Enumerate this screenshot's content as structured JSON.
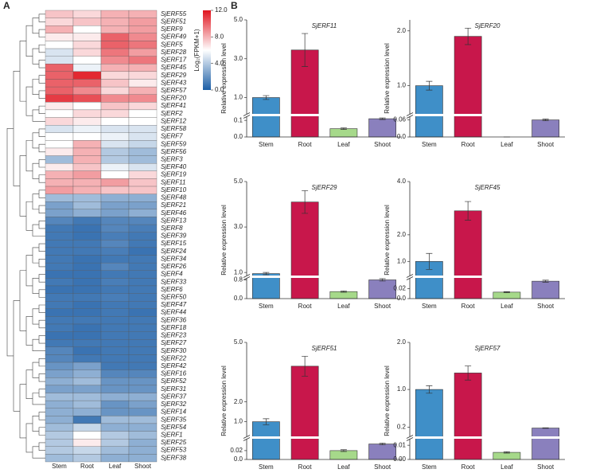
{
  "panel_labels": [
    "A",
    "B"
  ],
  "chart_data": [
    {
      "type": "heatmap",
      "columns": [
        "Stem",
        "Root",
        "Leaf",
        "Shoot"
      ],
      "rows": [
        "SjERF55",
        "SjERF51",
        "SjERF9",
        "SjERF49",
        "SjERF5",
        "SjERF28",
        "SjERF17",
        "SjERF45",
        "SjERF29",
        "SjERF43",
        "SjERF57",
        "SjERF20",
        "SjERF41",
        "SjERF2",
        "SjERF12",
        "SjERF58",
        "SjERF7",
        "SjERF59",
        "SjERF56",
        "SjERF3",
        "SjERF40",
        "SjERF19",
        "SjERF11",
        "SjERF10",
        "SjERF48",
        "SjERF21",
        "SjERF46",
        "SjERF13",
        "SjERF8",
        "SjERF39",
        "SjERF15",
        "SjERF24",
        "SjERF34",
        "SjERF26",
        "SjERF4",
        "SjERF33",
        "SjERF6",
        "SjERF50",
        "SjERF47",
        "SjERF44",
        "SjERF36",
        "SjERF18",
        "SjERF23",
        "SjERF27",
        "SjERF30",
        "SjERF22",
        "SjERF42",
        "SjERF16",
        "SjERF52",
        "SjERF31",
        "SjERF37",
        "SjERF32",
        "SjERF14",
        "SjERF35",
        "SjERF54",
        "SjERF1",
        "SjERF25",
        "SjERF53",
        "SjERF38"
      ],
      "values": [
        [
          7.5,
          7,
          8,
          8
        ],
        [
          7,
          7.5,
          8,
          8.5
        ],
        [
          8,
          6,
          8,
          8.5
        ],
        [
          6.5,
          6.5,
          10,
          9
        ],
        [
          6,
          7,
          10,
          9.5
        ],
        [
          5,
          7,
          9.5,
          8.5
        ],
        [
          5,
          6,
          9,
          9.5
        ],
        [
          10,
          5.5,
          8,
          8
        ],
        [
          10,
          11.5,
          7,
          7
        ],
        [
          10,
          10,
          7.5,
          6.5
        ],
        [
          10,
          9,
          7,
          8
        ],
        [
          11,
          10.5,
          9,
          9
        ],
        [
          6.5,
          6,
          7.5,
          7
        ],
        [
          6,
          7,
          7,
          6
        ],
        [
          7,
          6.5,
          6,
          6
        ],
        [
          5,
          5.5,
          5,
          5
        ],
        [
          6,
          6,
          5.5,
          5
        ],
        [
          6,
          8,
          5,
          4.5
        ],
        [
          6.5,
          8,
          4,
          3.5
        ],
        [
          3.5,
          8,
          4,
          3.5
        ],
        [
          6.5,
          7.5,
          5.5,
          5
        ],
        [
          8,
          8.5,
          6,
          7
        ],
        [
          8,
          8,
          8.5,
          7.5
        ],
        [
          8.5,
          8,
          7.5,
          7.5
        ],
        [
          3.5,
          3.5,
          3,
          3
        ],
        [
          2.5,
          3.5,
          2.5,
          2.5
        ],
        [
          2.5,
          3,
          2.5,
          3
        ],
        [
          1.5,
          1,
          1.5,
          1.5
        ],
        [
          1,
          0.8,
          1.5,
          1.2
        ],
        [
          1,
          0.8,
          1.2,
          1
        ],
        [
          1,
          1,
          1.5,
          1
        ],
        [
          1,
          1,
          1.2,
          0.8
        ],
        [
          1,
          0.8,
          1,
          1
        ],
        [
          1,
          0.8,
          1.5,
          1
        ],
        [
          0.8,
          0.8,
          1,
          1
        ],
        [
          1,
          0.8,
          1.2,
          1
        ],
        [
          0.8,
          0.8,
          1,
          1
        ],
        [
          1,
          1,
          1.2,
          1
        ],
        [
          1,
          0.8,
          1,
          1
        ],
        [
          0.8,
          0.8,
          1,
          0.8
        ],
        [
          1,
          1,
          1,
          1
        ],
        [
          1,
          0.8,
          1,
          1
        ],
        [
          0.8,
          0.8,
          1,
          1
        ],
        [
          1,
          1,
          1,
          1
        ],
        [
          1.5,
          0.8,
          1,
          1
        ],
        [
          1.5,
          1,
          1,
          1
        ],
        [
          2,
          2.5,
          1,
          1
        ],
        [
          2.5,
          3,
          1.5,
          1.5
        ],
        [
          3,
          3.5,
          2,
          2
        ],
        [
          2.5,
          2.5,
          2,
          2
        ],
        [
          3.5,
          3.5,
          3,
          3
        ],
        [
          3,
          3.5,
          2,
          2.5
        ],
        [
          3,
          3,
          2,
          2
        ],
        [
          3,
          1,
          3.5,
          3.5
        ],
        [
          3.5,
          4.5,
          3,
          3
        ],
        [
          4,
          6,
          4,
          3.5
        ],
        [
          4,
          6.5,
          4,
          3
        ],
        [
          4,
          4.5,
          3.5,
          3
        ],
        [
          3.5,
          4,
          3,
          3
        ]
      ],
      "colors": [
        "#1c5ea6",
        "#ffffff",
        "#e0141e"
      ],
      "zlim": [
        0,
        12
      ],
      "zticks": [
        {
          "value": 0,
          "label": "0.0"
        },
        {
          "value": 4,
          "label": "4.0"
        },
        {
          "value": 8,
          "label": "8.0"
        },
        {
          "value": 12,
          "label": "12.0"
        }
      ],
      "colorbar_label": "Log₂(FPKM+1)"
    },
    {
      "type": "bar",
      "title": "SjERF11",
      "y_label": "Relative expression level",
      "categories": [
        "Stem",
        "Root",
        "Leaf",
        "Shoot"
      ],
      "values": [
        1.0,
        3.45,
        0.05,
        0.11
      ],
      "errors": [
        0.1,
        0.85,
        0.005,
        0.005
      ],
      "colors": [
        "#3f8fc8",
        "#c8174b",
        "#a6d98a",
        "#8a80bd"
      ],
      "ylim": [
        0,
        5
      ],
      "ybreak": [
        0.12,
        0.2
      ],
      "yticks": [
        {
          "value": 0,
          "label": "0.0"
        },
        0.1,
        {
          "value": 1,
          "label": "1.0"
        },
        {
          "value": 3,
          "label": "3.0"
        },
        {
          "value": 5,
          "label": "5.0"
        }
      ]
    },
    {
      "type": "bar",
      "title": "SjERF20",
      "y_label": "Relative expression level",
      "categories": [
        "Stem",
        "Root",
        "Leaf",
        "Shoot"
      ],
      "values": [
        1.0,
        1.9,
        0,
        0.06
      ],
      "errors": [
        0.08,
        0.15,
        0,
        0.003
      ],
      "colors": [
        "#3f8fc8",
        "#c8174b",
        "#a6d98a",
        "#8a80bd"
      ],
      "ylim": [
        0,
        2.2
      ],
      "ybreak": [
        0.07,
        0.5
      ],
      "yticks": [
        {
          "value": 0,
          "label": "0.0"
        },
        0.06,
        {
          "value": 1,
          "label": "1.0"
        },
        {
          "value": 2,
          "label": "2.0"
        }
      ]
    },
    {
      "type": "bar",
      "title": "SjERF29",
      "y_label": "Relative expression level",
      "categories": [
        "Stem",
        "Root",
        "Leaf",
        "Shoot"
      ],
      "values": [
        0.95,
        4.1,
        0.3,
        0.8
      ],
      "errors": [
        0.05,
        0.5,
        0.03,
        0.05
      ],
      "colors": [
        "#3f8fc8",
        "#c8174b",
        "#a6d98a",
        "#8a80bd"
      ],
      "ylim": [
        0,
        5
      ],
      "ybreak": [
        0.85,
        0.9
      ],
      "yticks": [
        {
          "value": 0,
          "label": "0.0"
        },
        0.8,
        {
          "value": 1,
          "label": "1.0"
        },
        {
          "value": 3,
          "label": "3.0"
        },
        {
          "value": 5,
          "label": "5.0"
        }
      ]
    },
    {
      "type": "bar",
      "title": "SjERF45",
      "y_label": "Relative expression level",
      "categories": [
        "Stem",
        "Root",
        "Leaf",
        "Shoot"
      ],
      "values": [
        1.0,
        2.9,
        0.013,
        0.035
      ],
      "errors": [
        0.3,
        0.35,
        0.001,
        0.002
      ],
      "colors": [
        "#3f8fc8",
        "#c8174b",
        "#a6d98a",
        "#8a80bd"
      ],
      "ylim": [
        0,
        4
      ],
      "ybreak": [
        0.04,
        0.5
      ],
      "yticks": [
        {
          "value": 0,
          "label": "0.0"
        },
        0.02,
        {
          "value": 1,
          "label": "1.0"
        },
        {
          "value": 2,
          "label": "2.0"
        },
        {
          "value": 4,
          "label": "4.0"
        }
      ]
    },
    {
      "type": "bar",
      "title": "SjERF51",
      "y_label": "Relative expression level",
      "categories": [
        "Stem",
        "Root",
        "Leaf",
        "Shoot"
      ],
      "values": [
        1.0,
        3.8,
        0.02,
        0.035
      ],
      "errors": [
        0.15,
        0.5,
        0.002,
        0.002
      ],
      "colors": [
        "#3f8fc8",
        "#c8174b",
        "#a6d98a",
        "#8a80bd"
      ],
      "ylim": [
        0,
        5
      ],
      "ybreak": [
        0.045,
        0.3
      ],
      "yticks": [
        {
          "value": 0,
          "label": "0.0"
        },
        0.02,
        {
          "value": 1,
          "label": "1.0"
        },
        {
          "value": 2,
          "label": "2.0"
        },
        {
          "value": 5,
          "label": "5.0"
        }
      ]
    },
    {
      "type": "bar",
      "title": "SjERF57",
      "y_label": "Relative expression level",
      "categories": [
        "Stem",
        "Root",
        "Leaf",
        "Shoot"
      ],
      "values": [
        1.0,
        1.35,
        0.005,
        0.18
      ],
      "errors": [
        0.08,
        0.15,
        0.0005,
        0.005
      ],
      "colors": [
        "#3f8fc8",
        "#c8174b",
        "#a6d98a",
        "#8a80bd"
      ],
      "ylim": [
        0,
        2
      ],
      "ybreak": [
        0.014,
        0.02
      ],
      "yticks": [
        {
          "value": 0,
          "label": "0.00"
        },
        0.01,
        0.2,
        {
          "value": 1,
          "label": "1.0"
        },
        {
          "value": 2,
          "label": "2.0"
        }
      ]
    }
  ]
}
